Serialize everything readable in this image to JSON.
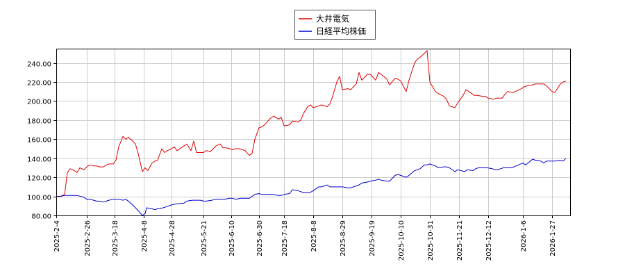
{
  "chart_data": {
    "type": "line",
    "title": "",
    "xlabel": "",
    "ylabel": "",
    "ylim": [
      80,
      255
    ],
    "xlim": [
      "2025-02-04",
      "2026-02-09"
    ],
    "grid": true,
    "legend_position": "top-center",
    "y_ticks": [
      "80.00",
      "100.00",
      "120.00",
      "140.00",
      "160.00",
      "180.00",
      "200.00",
      "220.00",
      "240.00"
    ],
    "x_ticks": [
      "2025-2-4",
      "2025-2-26",
      "2025-3-18",
      "2025-4-8",
      "2025-4-28",
      "2025-5-21",
      "2025-6-10",
      "2025-6-30",
      "2025-7-18",
      "2025-8-8",
      "2025-8-29",
      "2025-9-19",
      "2025-10-10",
      "2025-10-31",
      "2025-11-21",
      "2025-12-12",
      "2026-1-6",
      "2026-1-27"
    ],
    "series": [
      {
        "name": "大井電気",
        "color": "#dd0000",
        "points": [
          [
            "2025-02-04",
            100
          ],
          [
            "2025-02-07",
            100
          ],
          [
            "2025-02-10",
            102
          ],
          [
            "2025-02-12",
            125
          ],
          [
            "2025-02-14",
            129
          ],
          [
            "2025-02-17",
            127
          ],
          [
            "2025-02-19",
            125
          ],
          [
            "2025-02-21",
            130
          ],
          [
            "2025-02-24",
            128
          ],
          [
            "2025-02-26",
            131
          ],
          [
            "2025-02-28",
            133
          ],
          [
            "2025-03-03",
            132
          ],
          [
            "2025-03-05",
            132
          ],
          [
            "2025-03-07",
            131
          ],
          [
            "2025-03-10",
            131
          ],
          [
            "2025-03-12",
            133
          ],
          [
            "2025-03-14",
            134
          ],
          [
            "2025-03-17",
            134
          ],
          [
            "2025-03-19",
            138
          ],
          [
            "2025-03-21",
            152
          ],
          [
            "2025-03-24",
            163
          ],
          [
            "2025-03-26",
            160
          ],
          [
            "2025-03-28",
            162
          ],
          [
            "2025-03-31",
            158
          ],
          [
            "2025-04-02",
            155
          ],
          [
            "2025-04-04",
            145
          ],
          [
            "2025-04-07",
            126
          ],
          [
            "2025-04-09",
            130
          ],
          [
            "2025-04-11",
            127
          ],
          [
            "2025-04-14",
            135
          ],
          [
            "2025-04-16",
            137
          ],
          [
            "2025-04-18",
            138
          ],
          [
            "2025-04-21",
            150
          ],
          [
            "2025-04-23",
            146
          ],
          [
            "2025-04-25",
            148
          ],
          [
            "2025-04-28",
            150
          ],
          [
            "2025-04-30",
            152
          ],
          [
            "2025-05-02",
            148
          ],
          [
            "2025-05-07",
            153
          ],
          [
            "2025-05-09",
            155
          ],
          [
            "2025-05-12",
            148
          ],
          [
            "2025-05-14",
            158
          ],
          [
            "2025-05-16",
            146
          ],
          [
            "2025-05-19",
            146
          ],
          [
            "2025-05-21",
            146
          ],
          [
            "2025-05-23",
            148
          ],
          [
            "2025-05-26",
            147
          ],
          [
            "2025-05-28",
            150
          ],
          [
            "2025-05-30",
            153
          ],
          [
            "2025-06-02",
            155
          ],
          [
            "2025-06-04",
            151
          ],
          [
            "2025-06-06",
            151
          ],
          [
            "2025-06-09",
            150
          ],
          [
            "2025-06-11",
            149
          ],
          [
            "2025-06-13",
            150
          ],
          [
            "2025-06-16",
            150
          ],
          [
            "2025-06-18",
            149
          ],
          [
            "2025-06-20",
            148
          ],
          [
            "2025-06-23",
            143
          ],
          [
            "2025-06-25",
            145
          ],
          [
            "2025-06-27",
            160
          ],
          [
            "2025-06-30",
            172
          ],
          [
            "2025-07-02",
            173
          ],
          [
            "2025-07-04",
            175
          ],
          [
            "2025-07-07",
            180
          ],
          [
            "2025-07-09",
            183
          ],
          [
            "2025-07-11",
            184
          ],
          [
            "2025-07-14",
            181
          ],
          [
            "2025-07-16",
            183
          ],
          [
            "2025-07-18",
            174
          ],
          [
            "2025-07-22",
            175
          ],
          [
            "2025-07-24",
            179
          ],
          [
            "2025-07-28",
            178
          ],
          [
            "2025-07-30",
            180
          ],
          [
            "2025-08-01",
            187
          ],
          [
            "2025-08-04",
            194
          ],
          [
            "2025-08-06",
            196
          ],
          [
            "2025-08-08",
            193
          ],
          [
            "2025-08-12",
            195
          ],
          [
            "2025-08-14",
            196
          ],
          [
            "2025-08-18",
            194
          ],
          [
            "2025-08-20",
            197
          ],
          [
            "2025-08-22",
            205
          ],
          [
            "2025-08-25",
            220
          ],
          [
            "2025-08-27",
            226
          ],
          [
            "2025-08-29",
            212
          ],
          [
            "2025-09-02",
            213
          ],
          [
            "2025-09-04",
            212
          ],
          [
            "2025-09-08",
            218
          ],
          [
            "2025-09-10",
            230
          ],
          [
            "2025-09-12",
            222
          ],
          [
            "2025-09-16",
            228
          ],
          [
            "2025-09-18",
            228
          ],
          [
            "2025-09-22",
            222
          ],
          [
            "2025-09-24",
            230
          ],
          [
            "2025-09-26",
            228
          ],
          [
            "2025-09-30",
            223
          ],
          [
            "2025-10-02",
            217
          ],
          [
            "2025-10-06",
            224
          ],
          [
            "2025-10-08",
            223
          ],
          [
            "2025-10-10",
            221
          ],
          [
            "2025-10-14",
            210
          ],
          [
            "2025-10-16",
            222
          ],
          [
            "2025-10-20",
            240
          ],
          [
            "2025-10-22",
            244
          ],
          [
            "2025-10-24",
            246
          ],
          [
            "2025-10-27",
            250
          ],
          [
            "2025-10-29",
            253
          ],
          [
            "2025-10-31",
            220
          ],
          [
            "2025-11-04",
            210
          ],
          [
            "2025-11-06",
            208
          ],
          [
            "2025-11-10",
            205
          ],
          [
            "2025-11-12",
            202
          ],
          [
            "2025-11-14",
            195
          ],
          [
            "2025-11-18",
            193
          ],
          [
            "2025-11-20",
            198
          ],
          [
            "2025-11-24",
            206
          ],
          [
            "2025-11-26",
            212
          ],
          [
            "2025-11-28",
            210
          ],
          [
            "2025-12-02",
            206
          ],
          [
            "2025-12-04",
            206
          ],
          [
            "2025-12-08",
            205
          ],
          [
            "2025-12-10",
            205
          ],
          [
            "2025-12-12",
            203
          ],
          [
            "2025-12-16",
            202
          ],
          [
            "2025-12-18",
            203
          ],
          [
            "2025-12-22",
            203
          ],
          [
            "2025-12-24",
            207
          ],
          [
            "2025-12-26",
            210
          ],
          [
            "2025-12-30",
            209
          ],
          [
            "2026-01-05",
            213
          ],
          [
            "2026-01-07",
            215
          ],
          [
            "2026-01-09",
            216
          ],
          [
            "2026-01-13",
            217
          ],
          [
            "2026-01-15",
            218
          ],
          [
            "2026-01-19",
            218
          ],
          [
            "2026-01-21",
            218
          ],
          [
            "2026-01-23",
            216
          ],
          [
            "2026-01-27",
            210
          ],
          [
            "2026-01-29",
            209
          ],
          [
            "2026-02-02",
            218
          ],
          [
            "2026-02-04",
            220
          ],
          [
            "2026-02-06",
            221
          ]
        ]
      },
      {
        "name": "日経平均株価",
        "color": "#0000cc",
        "points": [
          [
            "2025-02-04",
            100
          ],
          [
            "2025-02-07",
            100
          ],
          [
            "2025-02-10",
            101
          ],
          [
            "2025-02-14",
            101
          ],
          [
            "2025-02-19",
            101
          ],
          [
            "2025-02-24",
            99
          ],
          [
            "2025-02-26",
            97
          ],
          [
            "2025-02-28",
            97
          ],
          [
            "2025-03-03",
            96
          ],
          [
            "2025-03-05",
            95
          ],
          [
            "2025-03-07",
            95
          ],
          [
            "2025-03-10",
            94
          ],
          [
            "2025-03-12",
            95
          ],
          [
            "2025-03-14",
            96
          ],
          [
            "2025-03-17",
            97
          ],
          [
            "2025-03-19",
            97
          ],
          [
            "2025-03-21",
            97
          ],
          [
            "2025-03-24",
            96
          ],
          [
            "2025-03-26",
            97
          ],
          [
            "2025-03-28",
            95
          ],
          [
            "2025-03-31",
            91
          ],
          [
            "2025-04-02",
            88
          ],
          [
            "2025-04-04",
            85
          ],
          [
            "2025-04-07",
            80
          ],
          [
            "2025-04-09",
            82
          ],
          [
            "2025-04-10",
            88
          ],
          [
            "2025-04-14",
            87
          ],
          [
            "2025-04-16",
            86
          ],
          [
            "2025-04-18",
            87
          ],
          [
            "2025-04-22",
            88
          ],
          [
            "2025-04-24",
            89
          ],
          [
            "2025-04-28",
            91
          ],
          [
            "2025-05-01",
            92
          ],
          [
            "2025-05-07",
            93
          ],
          [
            "2025-05-09",
            95
          ],
          [
            "2025-05-13",
            96
          ],
          [
            "2025-05-15",
            96
          ],
          [
            "2025-05-19",
            96
          ],
          [
            "2025-05-21",
            95
          ],
          [
            "2025-05-23",
            95
          ],
          [
            "2025-05-27",
            96
          ],
          [
            "2025-05-30",
            97
          ],
          [
            "2025-06-03",
            97
          ],
          [
            "2025-06-05",
            97
          ],
          [
            "2025-06-09",
            98
          ],
          [
            "2025-06-11",
            98
          ],
          [
            "2025-06-13",
            97
          ],
          [
            "2025-06-17",
            98
          ],
          [
            "2025-06-19",
            98
          ],
          [
            "2025-06-23",
            98
          ],
          [
            "2025-06-25",
            100
          ],
          [
            "2025-06-27",
            102
          ],
          [
            "2025-06-30",
            103
          ],
          [
            "2025-07-02",
            102
          ],
          [
            "2025-07-04",
            102
          ],
          [
            "2025-07-08",
            102
          ],
          [
            "2025-07-10",
            102
          ],
          [
            "2025-07-14",
            101
          ],
          [
            "2025-07-16",
            101
          ],
          [
            "2025-07-18",
            102
          ],
          [
            "2025-07-22",
            103
          ],
          [
            "2025-07-24",
            107
          ],
          [
            "2025-07-28",
            106
          ],
          [
            "2025-07-30",
            105
          ],
          [
            "2025-08-01",
            104
          ],
          [
            "2025-08-05",
            104
          ],
          [
            "2025-08-07",
            105
          ],
          [
            "2025-08-12",
            110
          ],
          [
            "2025-08-14",
            110
          ],
          [
            "2025-08-18",
            112
          ],
          [
            "2025-08-20",
            110
          ],
          [
            "2025-08-22",
            110
          ],
          [
            "2025-08-26",
            110
          ],
          [
            "2025-08-29",
            110
          ],
          [
            "2025-09-02",
            109
          ],
          [
            "2025-09-04",
            109
          ],
          [
            "2025-09-08",
            111
          ],
          [
            "2025-09-10",
            112
          ],
          [
            "2025-09-12",
            114
          ],
          [
            "2025-09-16",
            115
          ],
          [
            "2025-09-18",
            116
          ],
          [
            "2025-09-22",
            117
          ],
          [
            "2025-09-24",
            118
          ],
          [
            "2025-09-26",
            117
          ],
          [
            "2025-09-30",
            116
          ],
          [
            "2025-10-02",
            116
          ],
          [
            "2025-10-06",
            122
          ],
          [
            "2025-10-08",
            123
          ],
          [
            "2025-10-10",
            122
          ],
          [
            "2025-10-14",
            120
          ],
          [
            "2025-10-16",
            122
          ],
          [
            "2025-10-20",
            127
          ],
          [
            "2025-10-22",
            128
          ],
          [
            "2025-10-24",
            129
          ],
          [
            "2025-10-27",
            133
          ],
          [
            "2025-10-29",
            133
          ],
          [
            "2025-10-31",
            134
          ],
          [
            "2025-11-04",
            132
          ],
          [
            "2025-11-06",
            130
          ],
          [
            "2025-11-10",
            131
          ],
          [
            "2025-11-12",
            131
          ],
          [
            "2025-11-14",
            130
          ],
          [
            "2025-11-18",
            126
          ],
          [
            "2025-11-20",
            128
          ],
          [
            "2025-11-25",
            126
          ],
          [
            "2025-11-27",
            128
          ],
          [
            "2025-12-01",
            127
          ],
          [
            "2025-12-03",
            129
          ],
          [
            "2025-12-05",
            130
          ],
          [
            "2025-12-09",
            130
          ],
          [
            "2025-12-11",
            130
          ],
          [
            "2025-12-15",
            129
          ],
          [
            "2025-12-17",
            128
          ],
          [
            "2025-12-19",
            128
          ],
          [
            "2025-12-23",
            130
          ],
          [
            "2025-12-25",
            130
          ],
          [
            "2025-12-29",
            130
          ],
          [
            "2026-01-06",
            135
          ],
          [
            "2026-01-08",
            133
          ],
          [
            "2026-01-13",
            139
          ],
          [
            "2026-01-15",
            138
          ],
          [
            "2026-01-19",
            137
          ],
          [
            "2026-01-21",
            135
          ],
          [
            "2026-01-23",
            137
          ],
          [
            "2026-01-27",
            137
          ],
          [
            "2026-01-29",
            137
          ],
          [
            "2026-02-02",
            138
          ],
          [
            "2026-02-04",
            137
          ],
          [
            "2026-02-06",
            140
          ]
        ]
      }
    ]
  }
}
